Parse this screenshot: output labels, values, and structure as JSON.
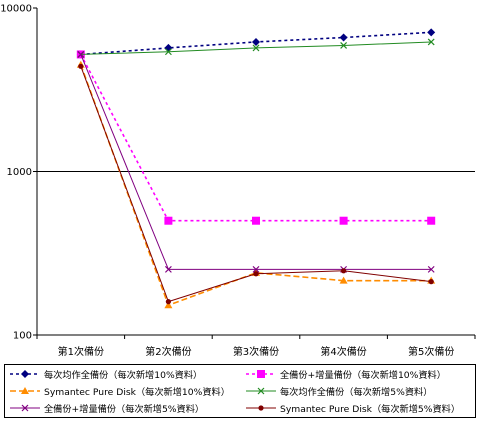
{
  "chart_data": {
    "type": "line",
    "title": "",
    "xlabel": "",
    "ylabel": "",
    "scale": "log",
    "ylim": [
      100,
      10000
    ],
    "y_ticks": [
      "100",
      "1000",
      "10000"
    ],
    "grid": "horizontal gridline at 1000",
    "legend_position": "bottom",
    "categories": [
      "第1次備份",
      "第2次備份",
      "第3次備份",
      "第4次備份",
      "第5次備份"
    ],
    "series": [
      {
        "name": "每次均作全備份（每次新增10%資料）",
        "values": [
          5200,
          5700,
          6200,
          6600,
          7100
        ],
        "color": "#000080",
        "dash": "dotted",
        "marker": "diamond"
      },
      {
        "name": "全備份+增量備份（每次新增10%資料）",
        "values": [
          5200,
          500,
          500,
          500,
          500
        ],
        "color": "#ff00ff",
        "dash": "dotted",
        "marker": "square"
      },
      {
        "name": "Symantec Pure Disk（每次新增10%資料）",
        "values": [
          4500,
          152,
          240,
          215,
          215
        ],
        "color": "#ff8c00",
        "dash": "dashed",
        "marker": "triangle"
      },
      {
        "name": "每次均作全備份（每次新增5%資料）",
        "values": [
          5200,
          5400,
          5700,
          5900,
          6200
        ],
        "color": "#228b22",
        "dash": "solid",
        "marker": "x"
      },
      {
        "name": "全備份+增量備份（每次新增5%資料）",
        "values": [
          5200,
          252,
          252,
          252,
          252
        ],
        "color": "#800080",
        "dash": "solid",
        "marker": "x"
      },
      {
        "name": "Symantec Pure Disk（每次新增5%資料）",
        "values": [
          4400,
          160,
          237,
          247,
          212
        ],
        "color": "#800000",
        "dash": "solid",
        "marker": "dot"
      }
    ]
  }
}
